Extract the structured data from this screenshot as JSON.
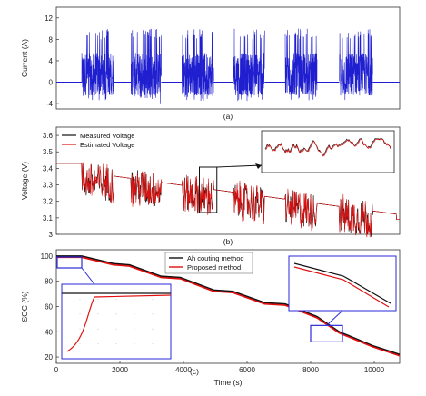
{
  "chart_data": [
    {
      "id": "a",
      "type": "line",
      "panel_label": "(a)",
      "ylabel": "Current (A)",
      "xlim": [
        0,
        10800
      ],
      "ylim": [
        -5,
        14
      ],
      "yticks": [
        -4,
        0,
        4,
        8,
        12
      ],
      "series": [
        {
          "color": "#1f1fd0",
          "baseline": 0,
          "bursts": [
            {
              "start": 800,
              "end": 1800,
              "min": -3.5,
              "max": 10
            },
            {
              "start": 2350,
              "end": 3300,
              "min": -4,
              "max": 10
            },
            {
              "start": 3950,
              "end": 4950,
              "min": -3.5,
              "max": 10
            },
            {
              "start": 5550,
              "end": 6550,
              "min": -3.5,
              "max": 10
            },
            {
              "start": 7200,
              "end": 8200,
              "min": -3.5,
              "max": 10
            },
            {
              "start": 8900,
              "end": 9950,
              "min": -3.5,
              "max": 10
            }
          ]
        }
      ]
    },
    {
      "id": "b",
      "type": "line",
      "panel_label": "(b)",
      "ylabel": "Voltage (V)",
      "xlim": [
        0,
        10800
      ],
      "ylim": [
        3.0,
        3.65
      ],
      "yticks": [
        3.0,
        3.1,
        3.2,
        3.3,
        3.4,
        3.5,
        3.6
      ],
      "legend": {
        "position": "top-left"
      },
      "series": [
        {
          "name": "Measured Voltage",
          "color": "#111111",
          "start_value": 3.43,
          "end_value": 3.09
        },
        {
          "name": "Estimated Voltage",
          "color": "#e01010",
          "start_value": 3.43,
          "end_value": 3.09
        }
      ],
      "inset": {
        "zoom_from": [
          4500,
          5050
        ],
        "zoom_y": [
          3.15,
          3.35
        ]
      }
    },
    {
      "id": "c",
      "type": "line",
      "panel_label": "(c)",
      "xlabel": "Time (s)",
      "ylabel": "SOC (%)",
      "xlim": [
        0,
        10800
      ],
      "ylim": [
        15,
        105
      ],
      "xticks": [
        0,
        2000,
        4000,
        6000,
        8000,
        10000
      ],
      "yticks": [
        20,
        40,
        60,
        80,
        100
      ],
      "legend": {
        "position": "top-center"
      },
      "series": [
        {
          "name": "Ah couting method",
          "color": "#111111",
          "x": [
            0,
            800,
            1800,
            2300,
            3300,
            3900,
            4950,
            5550,
            6550,
            7200,
            8200,
            8900,
            9950,
            10800
          ],
          "y": [
            100,
            100,
            94,
            93,
            84,
            83,
            73,
            72,
            63,
            62,
            52,
            40,
            29,
            22
          ]
        },
        {
          "name": "Proposed method",
          "color": "#e01010",
          "x": [
            0,
            800,
            1800,
            2300,
            3300,
            3900,
            4950,
            5550,
            6550,
            7200,
            8200,
            8900,
            9950,
            10800
          ],
          "y": [
            99,
            99,
            93,
            92,
            83,
            82,
            72,
            71,
            62,
            61,
            51,
            39,
            28,
            21
          ]
        }
      ],
      "inset_start": {
        "zoom_from": [
          0,
          800
        ]
      },
      "inset_mid": {
        "zoom_from": [
          8000,
          9000
        ]
      }
    }
  ]
}
